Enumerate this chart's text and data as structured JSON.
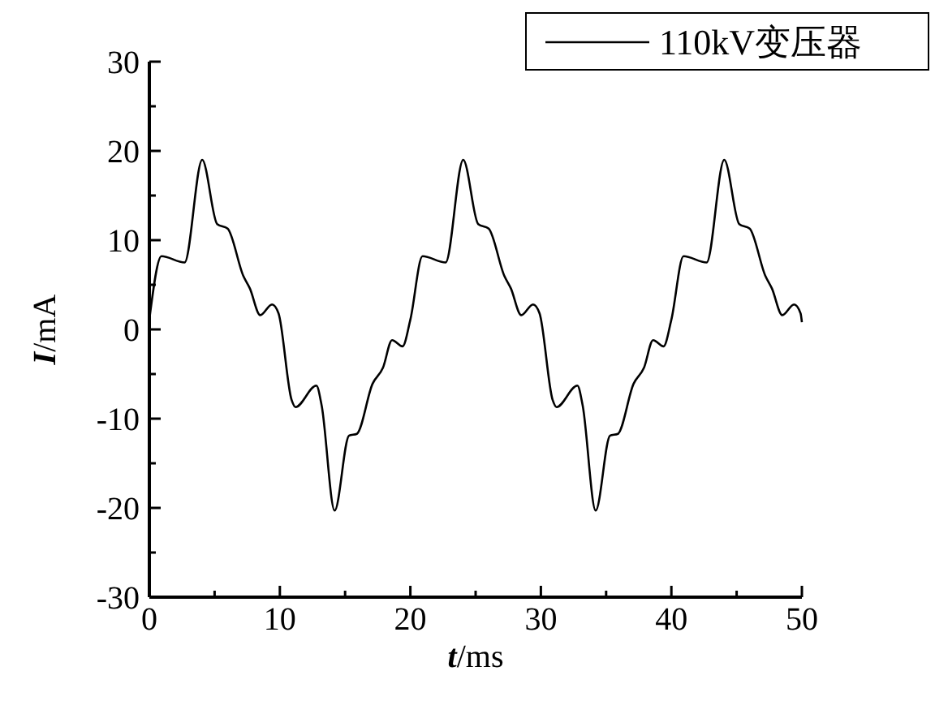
{
  "chart_data": {
    "type": "line",
    "xlabel": "t/ms",
    "ylabel": "I/mA",
    "xlim": [
      0,
      50
    ],
    "xticks": [
      0,
      {
        "value": 5,
        "label": null
      },
      10,
      {
        "value": 15,
        "label": null
      },
      20,
      {
        "value": 25,
        "label": null
      },
      30,
      {
        "value": 35,
        "label": null
      },
      40,
      {
        "value": 45,
        "label": null
      },
      50
    ],
    "ylim": [
      -30,
      30
    ],
    "yticks": [
      -30,
      {
        "value": -25,
        "label": null
      },
      -20,
      {
        "value": -15,
        "label": null
      },
      -10,
      {
        "value": -5,
        "label": null
      },
      0,
      {
        "value": 5,
        "label": null
      },
      10,
      {
        "value": 15,
        "label": null
      },
      20,
      {
        "value": 25,
        "label": null
      },
      30
    ],
    "grid": false,
    "legend": "top right",
    "marker": "none",
    "line_style": "solid",
    "series": [
      {
        "name": "110kV变压器",
        "color": "#000000",
        "x": [
          0,
          0.93,
          2.7,
          4.05,
          5.2,
          6,
          7.2,
          7.7,
          8.5,
          9.4,
          9.9,
          10.9,
          11.2,
          12.8,
          13.2,
          14.2,
          15.3,
          15.9,
          17.1,
          17.9,
          18.6,
          19.4,
          20,
          20.93,
          22.7,
          24.05,
          25.2,
          26,
          27.2,
          27.7,
          28.5,
          29.4,
          29.9,
          30.9,
          31.2,
          32.8,
          33.2,
          34.2,
          35.3,
          35.9,
          37.1,
          37.9,
          38.6,
          39.4,
          40,
          40.93,
          42.7,
          44.05,
          45.2,
          46,
          47.2,
          47.7,
          48.5,
          49.4,
          49.9,
          50
        ],
        "values": [
          1.1,
          8.2,
          7.5,
          19,
          11.8,
          11.3,
          6,
          4.6,
          1.6,
          2.8,
          1.8,
          -7.9,
          -8.7,
          -6.3,
          -8.5,
          -20.3,
          -11.9,
          -11.7,
          -6.1,
          -4.3,
          -1.2,
          -1.9,
          1.1,
          8.2,
          7.5,
          19,
          11.8,
          11.3,
          6,
          4.6,
          1.6,
          2.8,
          1.8,
          -7.9,
          -8.7,
          -6.3,
          -8.5,
          -20.3,
          -11.9,
          -11.7,
          -6.1,
          -4.3,
          -1.2,
          -1.9,
          1.1,
          8.2,
          7.5,
          19,
          11.8,
          11.3,
          6,
          4.6,
          1.6,
          2.8,
          1.8,
          0.8
        ]
      }
    ]
  }
}
